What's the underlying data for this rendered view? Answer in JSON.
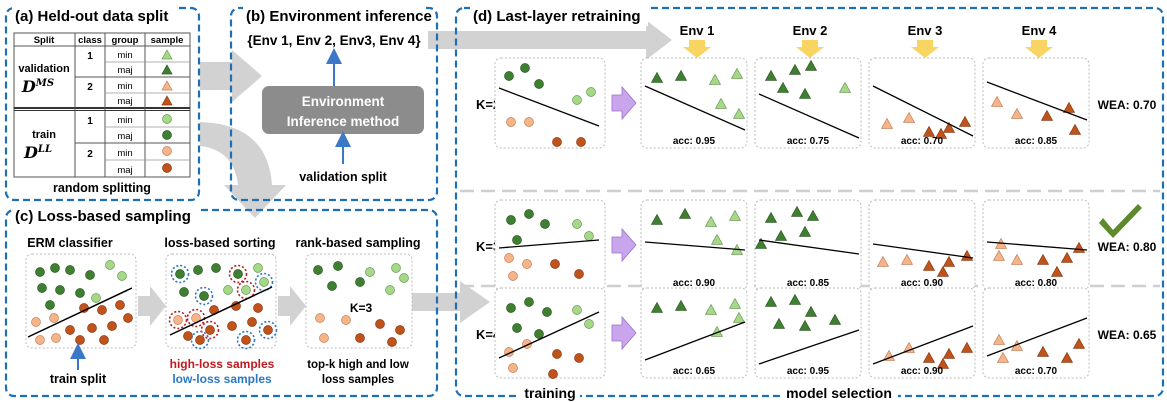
{
  "panels": {
    "a": {
      "title": "(a) Held-out data split",
      "headers": [
        "Split",
        "class",
        "group",
        "sample"
      ],
      "validation_label": "validation",
      "validation_symbol": "D",
      "validation_sup": "MS",
      "train_label": "train",
      "train_symbol": "D",
      "train_sup": "LL",
      "class_values": [
        "1",
        "2",
        "1",
        "2"
      ],
      "group_values": [
        "min",
        "maj",
        "min",
        "maj",
        "min",
        "maj",
        "min",
        "maj"
      ],
      "footer": "random splitting"
    },
    "b": {
      "title": "(b) Environment inference",
      "env_set": "{Env 1, Env 2, Env3, Env 4}",
      "method_line1": "Environment",
      "method_line2": "Inference method",
      "input_label": "validation split"
    },
    "c": {
      "title": "(c) Loss-based sampling",
      "erm_label": "ERM classifier",
      "sorting_label": "loss-based sorting",
      "rank_label": "rank-based sampling",
      "k_label": "K=3",
      "train_split": "train split",
      "high_loss": "high-loss samples",
      "low_loss": "low-loss samples",
      "topk_line1": "top-k high and low",
      "topk_line2": "loss samples"
    },
    "d": {
      "title": "(d) Last-layer retraining",
      "env_headers": [
        "Env 1",
        "Env 2",
        "Env 3",
        "Env 4"
      ],
      "rows": [
        {
          "k": "K=2",
          "accs": [
            "acc: 0.95",
            "acc: 0.75",
            "acc: 0.70",
            "acc: 0.85"
          ],
          "wea": "WEA: 0.70",
          "selected": false
        },
        {
          "k": "K=3",
          "accs": [
            "acc: 0.90",
            "acc: 0.85",
            "acc: 0.90",
            "acc: 0.80"
          ],
          "wea": "WEA: 0.80",
          "selected": true
        },
        {
          "k": "K=4",
          "accs": [
            "acc: 0.65",
            "acc: 0.95",
            "acc: 0.90",
            "acc: 0.70"
          ],
          "wea": "WEA: 0.65",
          "selected": false
        }
      ],
      "training_label": "training",
      "selection_label": "model selection"
    }
  },
  "colors": {
    "panel_border": "#1f6fb5",
    "min1": "#a6d88a",
    "maj1": "#3f7f32",
    "min2": "#f6b48a",
    "maj2": "#c0531b",
    "high_loss_text": "#c0191e",
    "low_loss_text": "#2a79c4",
    "method_box": "#8c8c8c",
    "arrow_gray": "#d2d2d2",
    "arrow_purple": "#c9a6ec",
    "arrow_yellow": "#f8d562",
    "check": "#5c8a2c",
    "blue_arrow": "#3b78c6"
  },
  "icons": [
    "triangle-marker",
    "circle-marker",
    "check-mark-icon",
    "down-arrow-icon"
  ]
}
